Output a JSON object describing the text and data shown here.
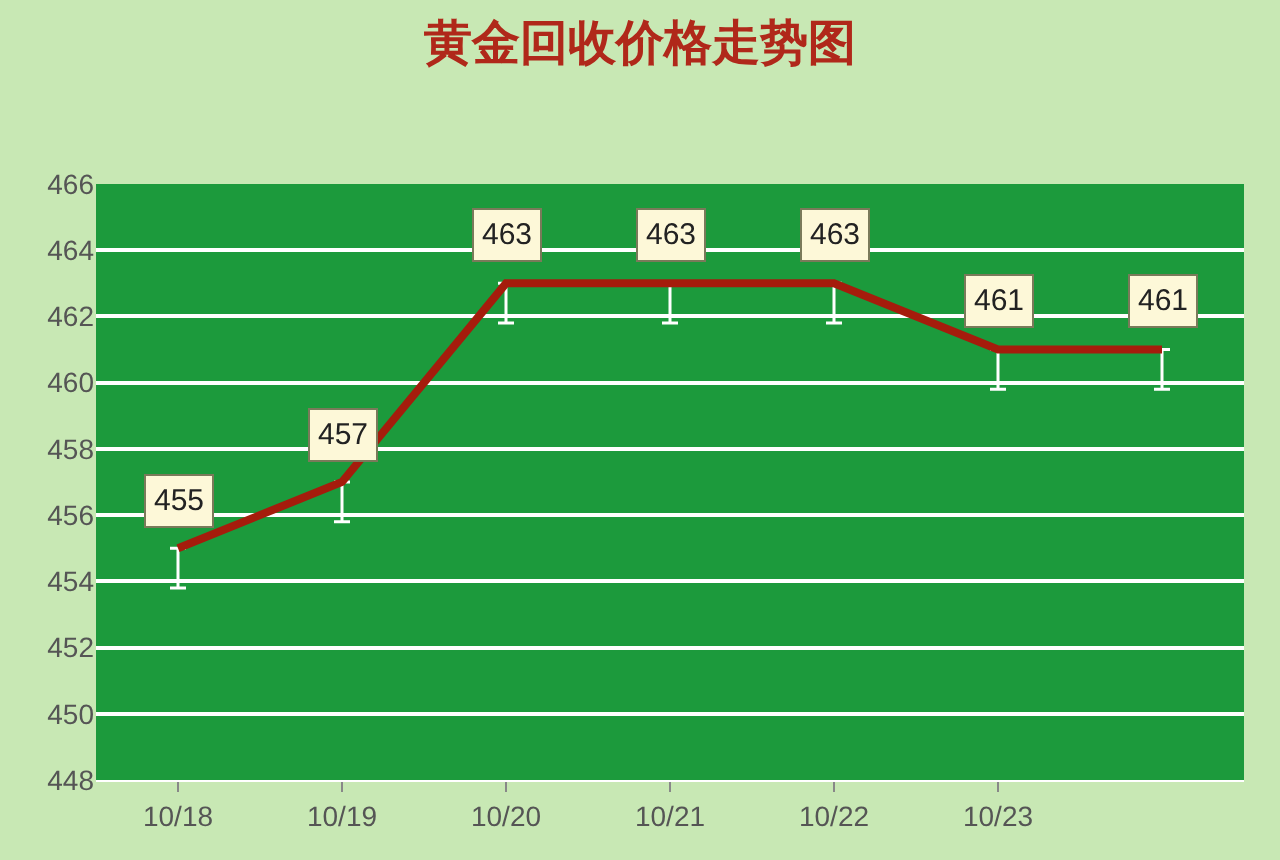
{
  "chart_data": {
    "type": "line",
    "title": "黄金回收价格走势图",
    "categories": [
      "10/18",
      "10/19",
      "10/20",
      "10/21",
      "10/22",
      "10/23",
      null
    ],
    "series": [
      {
        "color": "#a51c0c",
        "values": [
          455,
          457,
          463,
          463,
          463,
          461,
          461
        ],
        "errors": [
          [
            453.8,
            455
          ],
          [
            455.8,
            457
          ],
          [
            461.8,
            463
          ],
          [
            461.8,
            463
          ],
          [
            461.8,
            463
          ],
          [
            459.8,
            461
          ],
          [
            459.8,
            461
          ]
        ]
      }
    ],
    "ylim": [
      448,
      466
    ],
    "yticks": [
      448,
      450,
      452,
      454,
      456,
      458,
      460,
      462,
      464,
      466
    ],
    "grid": "y",
    "marker": "none",
    "line_style": "solid",
    "data_labels": true
  }
}
